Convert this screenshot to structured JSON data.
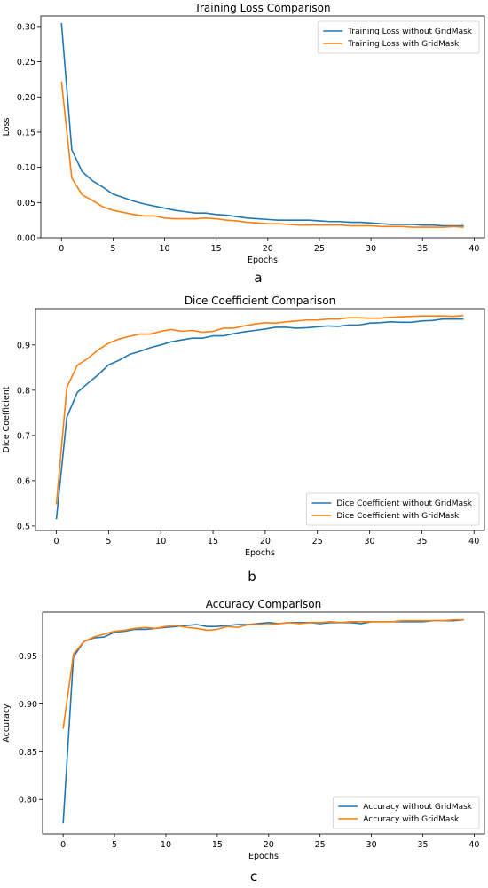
{
  "chart_data": [
    {
      "type": "line",
      "title": "Training Loss Comparison",
      "xlabel": "Epochs",
      "ylabel": "Loss",
      "xlim": [
        -2,
        41
      ],
      "ylim": [
        0.0,
        0.315
      ],
      "xticks": [
        0,
        5,
        10,
        15,
        20,
        25,
        30,
        35,
        40
      ],
      "yticks": [
        0.0,
        0.05,
        0.1,
        0.15,
        0.2,
        0.25,
        0.3
      ],
      "ytick_labels": [
        "0.00",
        "0.05",
        "0.10",
        "0.15",
        "0.20",
        "0.25",
        "0.30"
      ],
      "legend_position": "top-right",
      "grid": false,
      "x": [
        0,
        1,
        2,
        3,
        4,
        5,
        6,
        7,
        8,
        9,
        10,
        11,
        12,
        13,
        14,
        15,
        16,
        17,
        18,
        19,
        20,
        21,
        22,
        23,
        24,
        25,
        26,
        27,
        28,
        29,
        30,
        31,
        32,
        33,
        34,
        35,
        36,
        37,
        38,
        39
      ],
      "series": [
        {
          "name": "Training Loss without GridMask",
          "color": "#1f77b4",
          "values": [
            0.305,
            0.125,
            0.094,
            0.081,
            0.072,
            0.062,
            0.057,
            0.052,
            0.048,
            0.045,
            0.042,
            0.039,
            0.037,
            0.035,
            0.035,
            0.033,
            0.032,
            0.03,
            0.028,
            0.027,
            0.026,
            0.025,
            0.025,
            0.025,
            0.025,
            0.024,
            0.023,
            0.023,
            0.022,
            0.022,
            0.021,
            0.02,
            0.019,
            0.019,
            0.019,
            0.018,
            0.018,
            0.017,
            0.017,
            0.017
          ]
        },
        {
          "name": "Training Loss with GridMask",
          "color": "#ff7f0e",
          "values": [
            0.222,
            0.085,
            0.061,
            0.053,
            0.044,
            0.039,
            0.036,
            0.033,
            0.031,
            0.031,
            0.028,
            0.027,
            0.027,
            0.027,
            0.028,
            0.027,
            0.025,
            0.024,
            0.022,
            0.021,
            0.02,
            0.02,
            0.019,
            0.018,
            0.018,
            0.018,
            0.018,
            0.018,
            0.017,
            0.017,
            0.017,
            0.016,
            0.016,
            0.016,
            0.015,
            0.015,
            0.015,
            0.015,
            0.016,
            0.015
          ]
        }
      ]
    },
    {
      "type": "line",
      "title": "Dice Coefficient Comparison",
      "xlabel": "Epochs",
      "ylabel": "Dice Coefficient",
      "xlim": [
        -2,
        41
      ],
      "ylim": [
        0.49,
        0.98
      ],
      "xticks": [
        0,
        5,
        10,
        15,
        20,
        25,
        30,
        35,
        40
      ],
      "yticks": [
        0.5,
        0.6,
        0.7,
        0.8,
        0.9
      ],
      "ytick_labels": [
        "0.5",
        "0.6",
        "0.7",
        "0.8",
        "0.9"
      ],
      "legend_position": "bottom-right",
      "grid": false,
      "x": [
        0,
        1,
        2,
        3,
        4,
        5,
        6,
        7,
        8,
        9,
        10,
        11,
        12,
        13,
        14,
        15,
        16,
        17,
        18,
        19,
        20,
        21,
        22,
        23,
        24,
        25,
        26,
        27,
        28,
        29,
        30,
        31,
        32,
        33,
        34,
        35,
        36,
        37,
        38,
        39
      ],
      "series": [
        {
          "name": "Dice Coefficient without GridMask",
          "color": "#1f77b4",
          "values": [
            0.515,
            0.74,
            0.795,
            0.815,
            0.834,
            0.856,
            0.866,
            0.879,
            0.886,
            0.894,
            0.9,
            0.907,
            0.911,
            0.915,
            0.915,
            0.92,
            0.92,
            0.925,
            0.929,
            0.932,
            0.935,
            0.939,
            0.939,
            0.937,
            0.938,
            0.94,
            0.942,
            0.941,
            0.944,
            0.944,
            0.948,
            0.949,
            0.951,
            0.95,
            0.95,
            0.953,
            0.954,
            0.957,
            0.957,
            0.957
          ]
        },
        {
          "name": "Dice Coefficient with GridMask",
          "color": "#ff7f0e",
          "values": [
            0.548,
            0.806,
            0.855,
            0.87,
            0.889,
            0.904,
            0.913,
            0.919,
            0.924,
            0.924,
            0.93,
            0.934,
            0.93,
            0.932,
            0.928,
            0.93,
            0.937,
            0.937,
            0.942,
            0.946,
            0.949,
            0.948,
            0.951,
            0.953,
            0.955,
            0.955,
            0.957,
            0.957,
            0.96,
            0.96,
            0.959,
            0.959,
            0.961,
            0.962,
            0.963,
            0.964,
            0.964,
            0.964,
            0.963,
            0.965
          ]
        }
      ]
    },
    {
      "type": "line",
      "title": "Accuracy Comparison",
      "xlabel": "Epochs",
      "ylabel": "Accuracy",
      "xlim": [
        -2,
        41
      ],
      "ylim": [
        0.764,
        0.996
      ],
      "xticks": [
        0,
        5,
        10,
        15,
        20,
        25,
        30,
        35,
        40
      ],
      "yticks": [
        0.8,
        0.85,
        0.9,
        0.95
      ],
      "ytick_labels": [
        "0.80",
        "0.85",
        "0.90",
        "0.95"
      ],
      "legend_position": "bottom-right",
      "grid": false,
      "x": [
        0,
        1,
        2,
        3,
        4,
        5,
        6,
        7,
        8,
        9,
        10,
        11,
        12,
        13,
        14,
        15,
        16,
        17,
        18,
        19,
        20,
        21,
        22,
        23,
        24,
        25,
        26,
        27,
        28,
        29,
        30,
        31,
        32,
        33,
        34,
        35,
        36,
        37,
        38,
        39
      ],
      "series": [
        {
          "name": "Accuracy without GridMask",
          "color": "#1f77b4",
          "values": [
            0.775,
            0.949,
            0.965,
            0.969,
            0.97,
            0.975,
            0.976,
            0.978,
            0.978,
            0.979,
            0.98,
            0.981,
            0.982,
            0.983,
            0.981,
            0.981,
            0.982,
            0.983,
            0.983,
            0.984,
            0.985,
            0.984,
            0.985,
            0.985,
            0.985,
            0.984,
            0.985,
            0.985,
            0.985,
            0.984,
            0.986,
            0.986,
            0.986,
            0.986,
            0.986,
            0.986,
            0.987,
            0.987,
            0.987,
            0.988
          ]
        },
        {
          "name": "Accuracy with GridMask",
          "color": "#ff7f0e",
          "values": [
            0.874,
            0.952,
            0.965,
            0.97,
            0.973,
            0.976,
            0.977,
            0.979,
            0.98,
            0.979,
            0.981,
            0.982,
            0.98,
            0.979,
            0.977,
            0.978,
            0.981,
            0.98,
            0.983,
            0.983,
            0.983,
            0.984,
            0.985,
            0.984,
            0.985,
            0.985,
            0.986,
            0.985,
            0.986,
            0.986,
            0.986,
            0.986,
            0.986,
            0.987,
            0.987,
            0.987,
            0.987,
            0.987,
            0.988,
            0.988
          ]
        }
      ]
    }
  ],
  "panel_labels": [
    "a",
    "b",
    "c"
  ]
}
